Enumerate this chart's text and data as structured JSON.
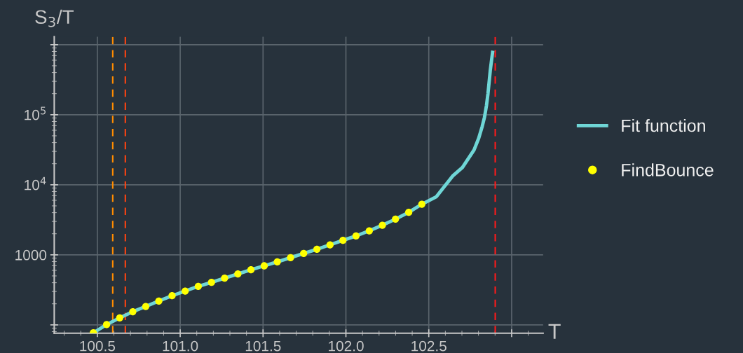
{
  "chart_data": {
    "type": "scatter",
    "xlabel": "T",
    "ylabel": "S$_{3}$/T",
    "log": "y",
    "grid": true,
    "legend": "right",
    "xlim": [
      100.24,
      103.19
    ],
    "ylim": [
      76,
      1300000
    ],
    "xticks": [
      100.5,
      {
        "value": 101,
        "label": "101.0"
      },
      101.5,
      {
        "value": 102,
        "label": "102.0"
      },
      102.5,
      {
        "value": 103,
        "label": null
      }
    ],
    "yticks": [
      {
        "value": 100,
        "label": null
      },
      1000,
      {
        "value": 10000,
        "label": "10$^{4}$"
      },
      {
        "value": 100000,
        "label": "10$^{5}$"
      },
      {
        "value": 1000000,
        "label": null
      }
    ],
    "series": [
      {
        "name": "Fit function",
        "type": "line",
        "color": "#6fd6d6",
        "marker": "none",
        "line_style": "solid",
        "x": [
          100.476,
          100.556,
          100.635,
          100.714,
          100.792,
          100.871,
          100.951,
          101.03,
          101.109,
          101.189,
          101.268,
          101.348,
          101.427,
          101.507,
          101.586,
          101.666,
          101.745,
          101.825,
          101.904,
          101.982,
          102.061,
          102.141,
          102.22,
          102.299,
          102.379,
          102.458,
          102.546,
          102.59,
          102.646,
          102.703,
          102.745,
          102.773,
          102.801,
          102.822,
          102.836,
          102.848,
          102.857,
          102.864,
          102.871,
          102.878,
          102.885
        ],
        "values": [
          77,
          101,
          126,
          154,
          183,
          219,
          261,
          304,
          355,
          405,
          465,
          533,
          612,
          697,
          794,
          912,
          1047,
          1202,
          1390,
          1611,
          1862,
          2203,
          2649,
          3236,
          4046,
          5284,
          6761,
          9183,
          13490,
          17660,
          24950,
          31400,
          46030,
          67610,
          91830,
          134900,
          198200,
          290400,
          426600,
          579400,
          776000
        ]
      },
      {
        "name": "FindBounce",
        "color": "#ffff00",
        "marker": "circle",
        "x": [
          100.476,
          100.556,
          100.635,
          100.714,
          100.792,
          100.871,
          100.951,
          101.03,
          101.109,
          101.189,
          101.268,
          101.348,
          101.427,
          101.507,
          101.586,
          101.666,
          101.745,
          101.825,
          101.904,
          101.982,
          102.061,
          102.141,
          102.22,
          102.299,
          102.379,
          102.458
        ],
        "values": [
          77,
          101,
          126,
          154,
          183,
          219,
          261,
          304,
          355,
          405,
          465,
          533,
          612,
          697,
          794,
          912,
          1047,
          1202,
          1390,
          1611,
          1862,
          2203,
          2649,
          3236,
          4046,
          5284
        ]
      }
    ],
    "ref_lines": [
      {
        "axis": "x",
        "value": 100.593,
        "color": "#ff8c00",
        "line_style": "dashed"
      },
      {
        "axis": "x",
        "value": 100.669,
        "color": "#ff4411",
        "line_style": "dashed"
      },
      {
        "axis": "x",
        "value": 102.901,
        "color": "#ff1a1a",
        "line_style": "dashed"
      }
    ]
  }
}
